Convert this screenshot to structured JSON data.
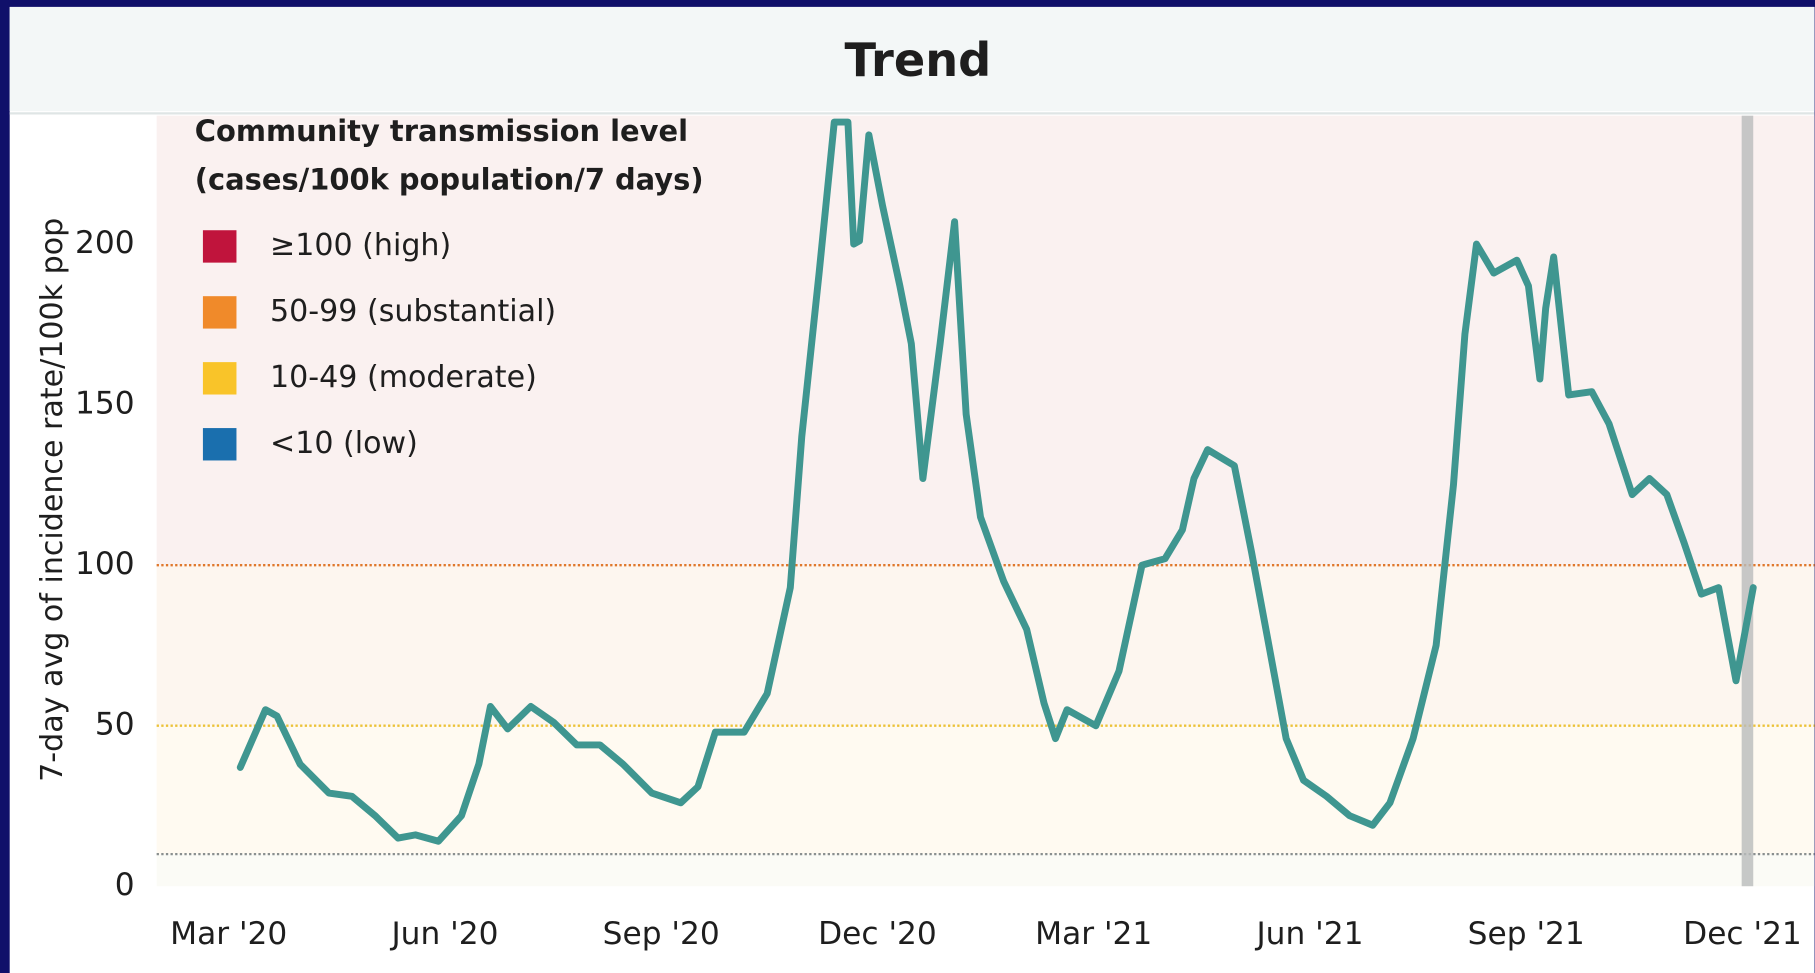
{
  "chart_data": {
    "type": "line",
    "title": "Trend",
    "y_label": "7-day avg of incidence rate/100k pop",
    "legend_title": [
      "Community transmission level",
      "(cases/100k population/7 days)"
    ],
    "legend": [
      {
        "label": "≥100 (high)",
        "color": "#c0143c"
      },
      {
        "label": "50-99 (substantial)",
        "color": "#f08a2a"
      },
      {
        "label": "10-49 (moderate)",
        "color": "#f9c429"
      },
      {
        "label": "<10 (low)",
        "color": "#1a6fae"
      }
    ],
    "thresholds": [
      {
        "value": 100,
        "color": "#e0782c"
      },
      {
        "value": 50,
        "color": "#ecc238"
      },
      {
        "value": 10,
        "color": "#8a8f8f"
      }
    ],
    "color": "#3f9690",
    "x": [
      3.16,
      3.51,
      3.67,
      3.99,
      4.39,
      4.71,
      5.03,
      5.35,
      5.59,
      5.91,
      6.23,
      6.47,
      6.63,
      6.87,
      7.19,
      7.51,
      7.83,
      8.15,
      8.47,
      8.87,
      9.27,
      9.51,
      9.75,
      10.15,
      10.47,
      10.79,
      10.95,
      11.19,
      11.4,
      11.59,
      11.67,
      11.75,
      11.88,
      12.07,
      12.31,
      12.47,
      12.63,
      12.87,
      13.07,
      13.23,
      13.43,
      13.75,
      14.07,
      14.31,
      14.47,
      14.63,
      15.03,
      15.35,
      15.67,
      15.99,
      16.23,
      16.39,
      16.58,
      16.95,
      17.19,
      17.43,
      17.67,
      17.91,
      18.23,
      18.55,
      18.87,
      19.11,
      19.43,
      19.75,
      19.99,
      20.15,
      20.31,
      20.55,
      20.87,
      21.03,
      21.19,
      21.27,
      21.38,
      21.59,
      21.91,
      22.15,
      22.47,
      22.71,
      22.95,
      23.19,
      23.43,
      23.67,
      23.91,
      24.15
    ],
    "values": [
      37,
      55,
      53,
      38,
      29,
      28,
      22,
      15,
      16,
      14,
      22,
      38,
      56,
      49,
      56,
      51,
      44,
      44,
      38,
      29,
      26,
      31,
      48,
      48,
      60,
      93,
      140,
      191,
      238,
      238,
      200,
      201,
      234,
      212,
      187,
      169,
      127,
      169,
      207,
      147,
      115,
      95,
      80,
      57,
      46,
      55,
      50,
      67,
      100,
      102,
      111,
      127,
      136,
      131,
      104,
      75,
      46,
      33,
      28,
      22,
      19,
      26,
      46,
      75,
      125,
      172,
      200,
      191,
      195,
      187,
      158,
      180,
      196,
      153,
      154,
      144,
      122,
      127,
      122,
      107,
      91,
      93,
      64,
      93
    ],
    "xlim": [
      2,
      25
    ],
    "xticks": [
      {
        "value": 3,
        "label": "Mar '20"
      },
      {
        "value": 6,
        "label": "Jun '20"
      },
      {
        "value": 9,
        "label": "Sep '20"
      },
      {
        "value": 12,
        "label": "Dec '20"
      },
      {
        "value": 15,
        "label": "Mar '21"
      },
      {
        "value": 18,
        "label": "Jun '21"
      },
      {
        "value": 21,
        "label": "Sep '21"
      },
      {
        "value": 24,
        "label": "Dec '21"
      }
    ],
    "ylim": [
      0,
      240
    ],
    "yticks": [
      0,
      50,
      100,
      150,
      200
    ]
  }
}
